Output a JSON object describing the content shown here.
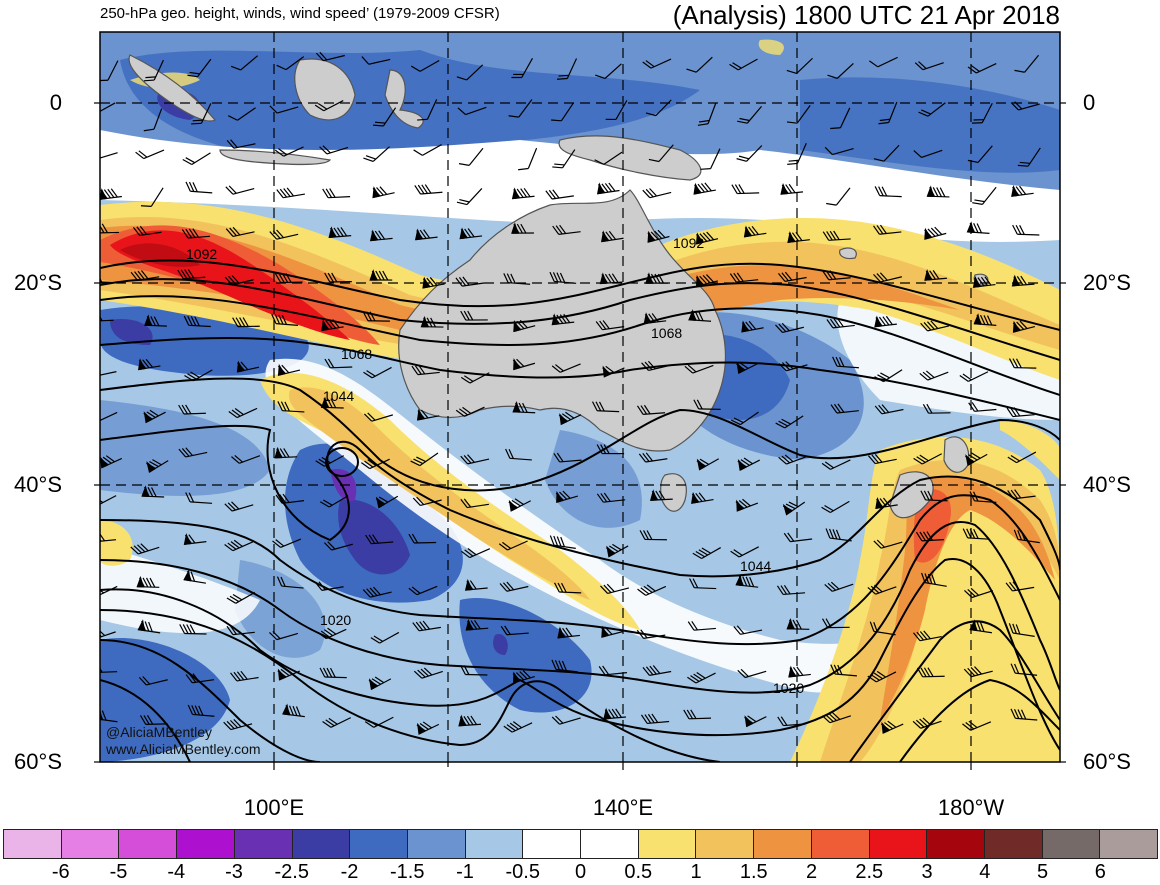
{
  "title_left": "250-hPa geo. height, winds, wind speed’ (1979-2009 CFSR)",
  "title_right": "(Analysis) 1800 UTC 21 Apr 2018",
  "lat_labels": [
    "0",
    "20°S",
    "40°S",
    "60°S"
  ],
  "lon_labels": [
    "100°E",
    "140°E",
    "180°W"
  ],
  "contour_labels": [
    "1092",
    "1092",
    "1068",
    "1068",
    "1044",
    "1044",
    "1020",
    "1020"
  ],
  "credit": {
    "line1": "@AliciaMBentley",
    "line2": "www.AliciaMBentley.com"
  },
  "colorbar": {
    "labels": [
      "-6",
      "-5",
      "-4",
      "-3",
      "-2.5",
      "-2",
      "-1.5",
      "-1",
      "-0.5",
      "0",
      "0.5",
      "1",
      "1.5",
      "2",
      "2.5",
      "3",
      "4",
      "5",
      "6"
    ],
    "colors": [
      "#ebb4e8",
      "#e57fe5",
      "#d44ed9",
      "#ad11cf",
      "#6a30b4",
      "#3b3da5",
      "#3e6bbf",
      "#6b93cf",
      "#a6c8e6",
      "#ffffff",
      "#ffffff",
      "#f8e16f",
      "#f2c25c",
      "#ee9340",
      "#ee5d35",
      "#e8141a",
      "#a5060e",
      "#702a28",
      "#756a67",
      "#aa9c9a"
    ]
  },
  "palette": {
    "land": "#cdcdcd",
    "coast": "#555555",
    "contour": "#000000",
    "grid": "#000000"
  }
}
